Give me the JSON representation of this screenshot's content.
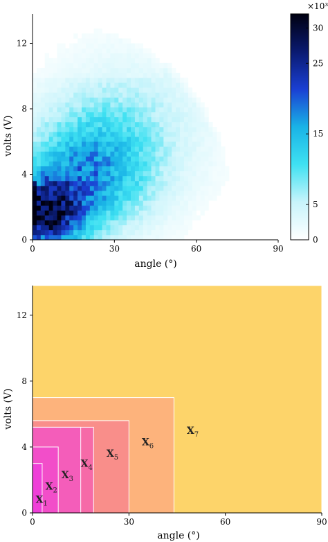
{
  "chart_data": [
    {
      "type": "heatmap",
      "xlabel": "angle (°)",
      "ylabel": "volts (V)",
      "xlim": [
        0,
        90
      ],
      "ylim": [
        0,
        13.8
      ],
      "x_ticks": [
        "0",
        "30",
        "60",
        "90"
      ],
      "y_ticks": [
        "0",
        "4",
        "8",
        "12"
      ],
      "colorbar": {
        "ticks": [
          "0",
          "5",
          "15",
          "25",
          "30"
        ],
        "multiplier_label": "×10³",
        "range": [
          0,
          32
        ],
        "colors": [
          "#ffffff",
          "#c8f4fb",
          "#3fe1f2",
          "#19b3e6",
          "#1a3fd3",
          "#0a1a70",
          "#000010"
        ]
      },
      "density_description_values": {
        "peak_angle": 5,
        "peak_volts": 1.5,
        "max_count": 32
      },
      "grid": false
    },
    {
      "type": "area",
      "xlabel": "angle (°)",
      "ylabel": "volts (V)",
      "xlim": [
        0,
        90
      ],
      "ylim": [
        0,
        13.8
      ],
      "x_ticks": [
        "0",
        "30",
        "60",
        "90"
      ],
      "y_ticks": [
        "0",
        "4",
        "8",
        "12"
      ],
      "regions": [
        {
          "label": "X",
          "sub": "7",
          "angle_max": 90,
          "volts_max": 13.8,
          "color": "#fdd46a",
          "label_at": [
            48,
            4.8
          ]
        },
        {
          "label": "X",
          "sub": "6",
          "angle_max": 44,
          "volts_max": 7.0,
          "color": "#fdb37c",
          "label_at": [
            34,
            4.1
          ]
        },
        {
          "label": "X",
          "sub": "5",
          "angle_max": 30,
          "volts_max": 5.6,
          "color": "#f98e8a",
          "label_at": [
            23,
            3.4
          ]
        },
        {
          "label": "X",
          "sub": "4",
          "angle_max": 19,
          "volts_max": 5.2,
          "color": "#f66aa8",
          "label_at": [
            15,
            2.8
          ]
        },
        {
          "label": "X",
          "sub": "3",
          "angle_max": 15,
          "volts_max": 5.2,
          "color": "#f45dba",
          "label_at": [
            9,
            2.1
          ]
        },
        {
          "label": "X",
          "sub": "2",
          "angle_max": 8,
          "volts_max": 4.0,
          "color": "#f24ec9",
          "label_at": [
            4,
            1.4
          ]
        },
        {
          "label": "X",
          "sub": "1",
          "angle_max": 3,
          "volts_max": 3.0,
          "color": "#ef3fd8",
          "label_at": [
            1,
            0.6
          ]
        }
      ],
      "grid": false
    }
  ]
}
